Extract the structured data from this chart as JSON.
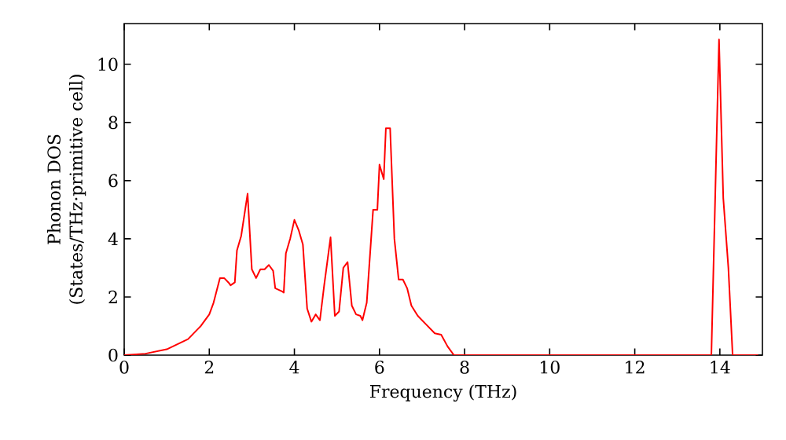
{
  "chart_data": {
    "type": "line",
    "xlabel": "Frequency (THz)",
    "ylabel": "Phonon DOS\n(States/THz·primitive cell)",
    "xlim": [
      0,
      15
    ],
    "ylim": [
      0,
      11.4
    ],
    "xticks": [
      0,
      2,
      4,
      6,
      8,
      10,
      12,
      14
    ],
    "yticks": [
      0,
      2,
      4,
      6,
      8,
      10
    ],
    "grid": false,
    "marker": "none",
    "line_style": "solid",
    "series": [
      {
        "color": "#ff0000",
        "x": [
          0,
          0.5,
          1,
          1.5,
          1.8,
          2.0,
          2.1,
          2.25,
          2.35,
          2.45,
          2.5,
          2.6,
          2.65,
          2.75,
          2.9,
          3.0,
          3.1,
          3.2,
          3.3,
          3.4,
          3.5,
          3.55,
          3.7,
          3.75,
          3.8,
          3.9,
          4.0,
          4.1,
          4.2,
          4.3,
          4.4,
          4.5,
          4.6,
          4.7,
          4.85,
          4.95,
          5.05,
          5.15,
          5.25,
          5.35,
          5.45,
          5.55,
          5.6,
          5.7,
          5.85,
          5.95,
          6.0,
          6.1,
          6.15,
          6.25,
          6.35,
          6.45,
          6.55,
          6.65,
          6.75,
          6.9,
          7.1,
          7.3,
          7.45,
          7.6,
          7.75,
          13.8,
          13.98,
          14.08,
          14.2,
          14.3,
          14.9
        ],
        "values": [
          0,
          0.05,
          0.2,
          0.55,
          1.0,
          1.4,
          1.8,
          2.65,
          2.65,
          2.5,
          2.4,
          2.5,
          3.6,
          4.1,
          5.55,
          2.95,
          2.65,
          2.95,
          2.95,
          3.1,
          2.9,
          2.3,
          2.2,
          2.15,
          3.5,
          4.0,
          4.65,
          4.3,
          3.8,
          1.6,
          1.15,
          1.4,
          1.2,
          2.4,
          4.05,
          1.35,
          1.5,
          3.0,
          3.2,
          1.7,
          1.4,
          1.35,
          1.2,
          1.8,
          5.0,
          5.0,
          6.55,
          6.05,
          7.8,
          7.8,
          4.0,
          2.6,
          2.6,
          2.3,
          1.7,
          1.35,
          1.05,
          0.75,
          0.7,
          0.3,
          0.0,
          0,
          10.85,
          5.4,
          3.0,
          0,
          0
        ]
      }
    ]
  }
}
